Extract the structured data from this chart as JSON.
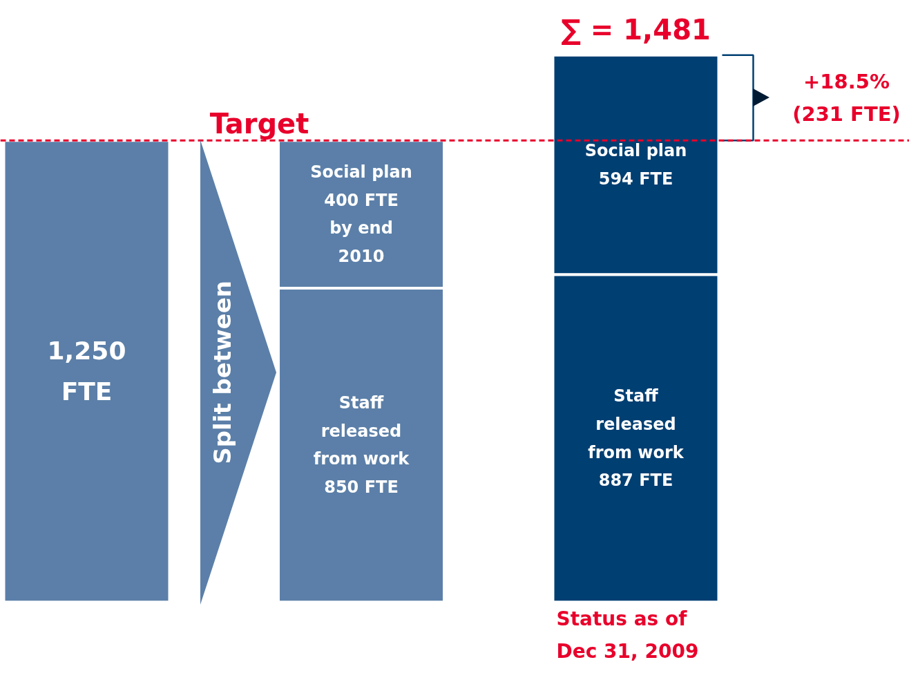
{
  "chart_data": {
    "type": "bar",
    "stacked": true,
    "categories": [
      null,
      null,
      null
    ],
    "series": [
      {
        "colors": [
          "#5b7fa8",
          "#5b7fa8",
          "#003f72"
        ],
        "values": [
          1250,
          850,
          887
        ],
        "value_labels": [
          "1,250\nFTE",
          "Staff\nreleased\nfrom work\n850 FTE",
          "Staff\nreleased\nfrom work\n887 FTE"
        ]
      },
      {
        "colors": [
          "#5b7fa8",
          "#5b7fa8",
          "#003f72"
        ],
        "values": [
          null,
          400,
          594
        ],
        "value_labels": [
          null,
          "Social plan\n400 FTE\nby end\n2010",
          "Social plan\n594 FTE"
        ]
      }
    ],
    "ref_lines": [
      {
        "axis": "y",
        "value": 1250,
        "label": "Target",
        "color": "#e8002b",
        "line_style": "dashed"
      }
    ],
    "annotations": [
      "∑ = 1,481",
      "+18.5%\n(231 FTE)",
      "Status as of\nDec 31, 2009",
      "Split between"
    ],
    "grid": false,
    "tick_labels": false
  }
}
